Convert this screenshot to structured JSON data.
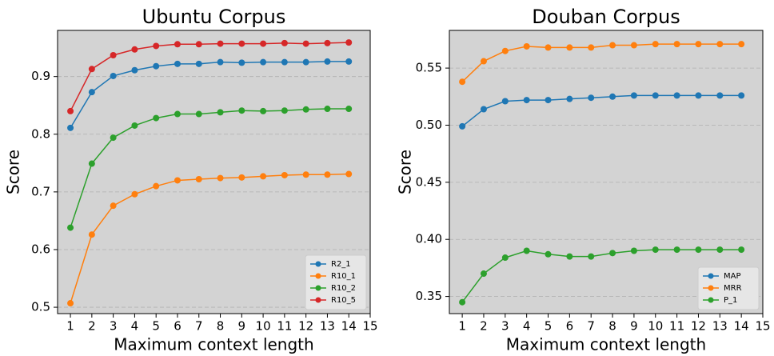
{
  "chart_data": [
    {
      "type": "line",
      "title": "Ubuntu Corpus",
      "x_label": "Maximum context length",
      "y_label": "Score",
      "x": [
        1,
        2,
        3,
        4,
        5,
        6,
        7,
        8,
        9,
        10,
        11,
        12,
        13,
        14
      ],
      "xlim": [
        0.4,
        15
      ],
      "xticks": [
        1,
        2,
        3,
        4,
        5,
        6,
        7,
        8,
        9,
        10,
        11,
        12,
        13,
        14,
        15
      ],
      "ylim": [
        0.489,
        0.98
      ],
      "yticks": [
        0.5,
        0.6,
        0.7,
        0.8,
        0.9
      ],
      "grid": true,
      "legend": "lower right",
      "series": [
        {
          "name": "R2_1",
          "color": "#1f77b4",
          "values": [
            0.811,
            0.873,
            0.901,
            0.911,
            0.918,
            0.922,
            0.922,
            0.925,
            0.924,
            0.925,
            0.925,
            0.925,
            0.926,
            0.926
          ]
        },
        {
          "name": "R10_1",
          "color": "#ff7f0e",
          "values": [
            0.507,
            0.626,
            0.676,
            0.696,
            0.71,
            0.72,
            0.722,
            0.724,
            0.725,
            0.727,
            0.729,
            0.73,
            0.73,
            0.731
          ]
        },
        {
          "name": "R10_2",
          "color": "#2ca02c",
          "values": [
            0.638,
            0.749,
            0.794,
            0.815,
            0.828,
            0.835,
            0.835,
            0.838,
            0.841,
            0.84,
            0.841,
            0.843,
            0.844,
            0.844
          ]
        },
        {
          "name": "R10_5",
          "color": "#d62728",
          "values": [
            0.84,
            0.913,
            0.937,
            0.947,
            0.953,
            0.956,
            0.956,
            0.957,
            0.957,
            0.957,
            0.958,
            0.957,
            0.958,
            0.959
          ]
        }
      ]
    },
    {
      "type": "line",
      "title": "Douban Corpus",
      "x_label": "Maximum context length",
      "y_label": "Score",
      "x": [
        1,
        2,
        3,
        4,
        5,
        6,
        7,
        8,
        9,
        10,
        11,
        12,
        13,
        14
      ],
      "xlim": [
        0.4,
        15
      ],
      "xticks": [
        1,
        2,
        3,
        4,
        5,
        6,
        7,
        8,
        9,
        10,
        11,
        12,
        13,
        14,
        15
      ],
      "ylim": [
        0.335,
        0.583
      ],
      "yticks": [
        0.35,
        {
          "value": 0.4,
          "label": "0.40"
        },
        0.45,
        {
          "value": 0.5,
          "label": "0.50"
        },
        0.55
      ],
      "grid": true,
      "legend": "lower right",
      "series": [
        {
          "name": "MAP",
          "color": "#1f77b4",
          "values": [
            0.499,
            0.514,
            0.521,
            0.522,
            0.522,
            0.523,
            0.524,
            0.525,
            0.526,
            0.526,
            0.526,
            0.526,
            0.526,
            0.526
          ]
        },
        {
          "name": "MRR",
          "color": "#ff7f0e",
          "values": [
            0.538,
            0.556,
            0.565,
            0.569,
            0.568,
            0.568,
            0.568,
            0.57,
            0.57,
            0.571,
            0.571,
            0.571,
            0.571,
            0.571
          ]
        },
        {
          "name": "P_1",
          "color": "#2ca02c",
          "values": [
            0.345,
            0.37,
            0.384,
            0.39,
            0.387,
            0.385,
            0.385,
            0.388,
            0.39,
            0.391,
            0.391,
            0.391,
            0.391,
            0.391
          ]
        }
      ]
    }
  ]
}
